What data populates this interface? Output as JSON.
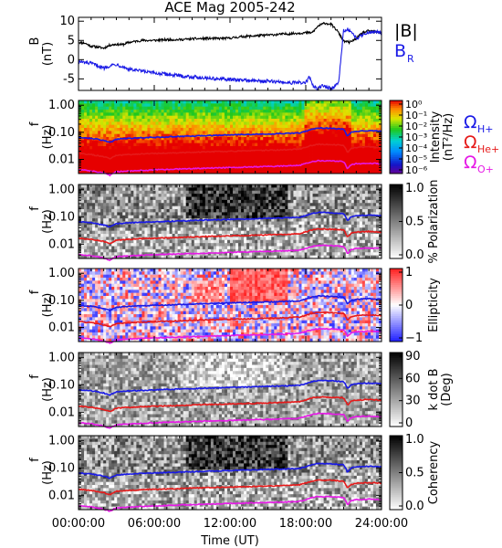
{
  "title": "ACE Mag 2005-242",
  "xaxis": {
    "label": "Time (UT)",
    "range": [
      0,
      24
    ],
    "ticks": [
      0,
      6,
      12,
      18,
      24
    ],
    "ticklabels": [
      "00:00:00",
      "06:00:00",
      "12:00:00",
      "18:00:00",
      "24:00:00"
    ]
  },
  "legend_top": {
    "black_base": "|B|",
    "blue_base": "B",
    "blue_sub": "R",
    "black_color": "#000000",
    "blue_color": "#1a1ae6"
  },
  "legend_gyro": [
    {
      "base": "Ω",
      "sub": "H+",
      "color": "#1a1ae6"
    },
    {
      "base": "Ω",
      "sub": "He+",
      "color": "#e61a1a"
    },
    {
      "base": "Ω",
      "sub": "O+",
      "color": "#e619e6"
    }
  ],
  "chart_data": [
    {
      "type": "line",
      "panel": "magnetic field",
      "ylabel": "B",
      "yunit": "(nT)",
      "ylim": [
        -8,
        11
      ],
      "yticks": [
        -5,
        0,
        5,
        10
      ],
      "series": [
        {
          "name": "|B|",
          "color": "#000000",
          "x": [
            0,
            0.5,
            1,
            1.5,
            2,
            2.5,
            3,
            3.5,
            4,
            5,
            6,
            7,
            8,
            9,
            10,
            11,
            12,
            13,
            14,
            15,
            16,
            17,
            18,
            18.5,
            19,
            19.5,
            20,
            20.5,
            21,
            21.5,
            22,
            22.5,
            23,
            23.5,
            24
          ],
          "y": [
            4.5,
            4.3,
            3.5,
            3.3,
            3.0,
            3.8,
            4.0,
            3.9,
            4.5,
            5.0,
            5.0,
            5.2,
            5.2,
            5.4,
            5.5,
            5.5,
            5.6,
            6.0,
            6.2,
            6.4,
            6.6,
            6.8,
            7.0,
            7.0,
            8.8,
            9.5,
            9.2,
            7.5,
            4.8,
            4.5,
            5.5,
            7.0,
            7.5,
            7.2,
            7.0
          ]
        },
        {
          "name": "B",
          "color": "#1a1ae6",
          "x": [
            0,
            0.5,
            1,
            1.5,
            2,
            2.5,
            3,
            3.5,
            4,
            5,
            6,
            7,
            8,
            9,
            10,
            11,
            12,
            13,
            14,
            15,
            16,
            17,
            18,
            18.3,
            18.6,
            19,
            19.3,
            19.6,
            20,
            20.3,
            20.6,
            21,
            21.3,
            21.6,
            22,
            22.5,
            23,
            23.5,
            24
          ],
          "y": [
            -0.5,
            -0.8,
            -1.0,
            -1.5,
            -2.2,
            -1.5,
            -1.2,
            -1.8,
            -2.5,
            -3.0,
            -3.5,
            -3.8,
            -4.2,
            -4.5,
            -4.7,
            -5.0,
            -5.2,
            -5.3,
            -5.5,
            -5.6,
            -5.8,
            -6.0,
            -6.0,
            -4.5,
            -7.0,
            -7.5,
            -6.8,
            -7.0,
            -7.5,
            -7.0,
            -6.0,
            7.5,
            8.0,
            7.0,
            5.5,
            6.5,
            7.2,
            7.3,
            7.0
          ]
        }
      ]
    },
    {
      "type": "heatmap",
      "panel": "intensity",
      "ylabel": "f",
      "yunit": "(Hz)",
      "ylim": [
        0.003,
        1.5
      ],
      "yscale": "log",
      "yticks": [
        0.01,
        0.1,
        1.0
      ],
      "yticklabels": [
        "0.01",
        "0.10",
        "1.00"
      ],
      "colorbar": {
        "label": "Intensity",
        "unit": "(nT²/Hz)",
        "colormap": "rainbow",
        "ticklabels": [
          "10⁰",
          "10⁻¹",
          "10⁻²",
          "10⁻³",
          "10⁻⁴",
          "10⁻⁵",
          "10⁻⁶"
        ],
        "range": [
          -6.5,
          0.5
        ]
      }
    },
    {
      "type": "heatmap",
      "panel": "polarization",
      "ylabel": "f",
      "yunit": "(Hz)",
      "ylim": [
        0.003,
        1.5
      ],
      "yscale": "log",
      "yticks": [
        0.01,
        0.1,
        1.0
      ],
      "yticklabels": [
        "0.01",
        "0.10",
        "1.00"
      ],
      "colorbar": {
        "label": "% Polarization",
        "colormap": "gray",
        "ticklabels": [
          "1.0",
          "0.5",
          "0.0"
        ],
        "range": [
          0,
          1
        ]
      }
    },
    {
      "type": "heatmap",
      "panel": "ellipticity",
      "ylabel": "f",
      "yunit": "(Hz)",
      "ylim": [
        0.003,
        1.5
      ],
      "yscale": "log",
      "yticks": [
        0.01,
        0.1,
        1.0
      ],
      "yticklabels": [
        "0.01",
        "0.10",
        "1.00"
      ],
      "colorbar": {
        "label": "Ellipticity",
        "colormap": "bwr",
        "ticklabels": [
          "1",
          "0",
          "−1"
        ],
        "range": [
          -1,
          1
        ]
      }
    },
    {
      "type": "heatmap",
      "panel": "k dot B",
      "ylabel": "f",
      "yunit": "(Hz)",
      "ylim": [
        0.003,
        1.5
      ],
      "yscale": "log",
      "yticks": [
        0.01,
        0.1,
        1.0
      ],
      "yticklabels": [
        "0.01",
        "0.10",
        "1.00"
      ],
      "colorbar": {
        "label": "k dot B",
        "unit": "(Deg)",
        "colormap": "gray",
        "ticklabels": [
          "90",
          "60",
          "30",
          "0"
        ],
        "range": [
          0,
          90
        ]
      }
    },
    {
      "type": "heatmap",
      "panel": "coherency",
      "ylabel": "f",
      "yunit": "(Hz)",
      "ylim": [
        0.003,
        1.5
      ],
      "yscale": "log",
      "yticks": [
        0.01,
        0.1,
        1.0
      ],
      "yticklabels": [
        "0.01",
        "0.10",
        "1.00"
      ],
      "colorbar": {
        "label": "Coherency",
        "colormap": "gray",
        "ticklabels": [
          "1.0",
          "0.5",
          "0.0"
        ],
        "range": [
          0,
          1
        ]
      }
    }
  ],
  "gyro_lines": [
    {
      "name": "Ω H+",
      "color": "#1a1ae6",
      "x": [
        0,
        1,
        2,
        2.5,
        3,
        4,
        6,
        8,
        10,
        12,
        14,
        16,
        17.5,
        18,
        18.5,
        19,
        20,
        21,
        21.3,
        21.6,
        22,
        23,
        24
      ],
      "y": [
        0.065,
        0.06,
        0.05,
        0.042,
        0.055,
        0.06,
        0.065,
        0.07,
        0.075,
        0.08,
        0.085,
        0.09,
        0.095,
        0.11,
        0.13,
        0.145,
        0.14,
        0.13,
        0.07,
        0.1,
        0.11,
        0.115,
        0.11
      ]
    },
    {
      "name": "Ω He+",
      "color": "#e61a1a",
      "x": [
        0,
        1,
        2,
        2.5,
        3,
        4,
        6,
        8,
        10,
        12,
        14,
        16,
        17.5,
        18,
        18.5,
        19,
        20,
        21,
        21.3,
        21.6,
        22,
        23,
        24
      ],
      "y": [
        0.0165,
        0.015,
        0.0125,
        0.0105,
        0.014,
        0.015,
        0.0165,
        0.0175,
        0.019,
        0.02,
        0.021,
        0.0225,
        0.024,
        0.028,
        0.033,
        0.036,
        0.035,
        0.033,
        0.018,
        0.025,
        0.0275,
        0.029,
        0.0275
      ]
    },
    {
      "name": "Ω O+",
      "color": "#e619e6",
      "x": [
        0,
        1,
        2,
        2.5,
        3,
        4,
        6,
        8,
        10,
        12,
        14,
        16,
        17.5,
        18,
        18.5,
        19,
        20,
        21,
        21.3,
        21.6,
        22,
        23,
        24
      ],
      "y": [
        0.0041,
        0.0038,
        0.0031,
        0.0026,
        0.0035,
        0.0037,
        0.0041,
        0.0044,
        0.0047,
        0.005,
        0.0053,
        0.0056,
        0.006,
        0.007,
        0.0082,
        0.009,
        0.0088,
        0.0083,
        0.0045,
        0.0063,
        0.0069,
        0.0072,
        0.0069
      ]
    }
  ]
}
